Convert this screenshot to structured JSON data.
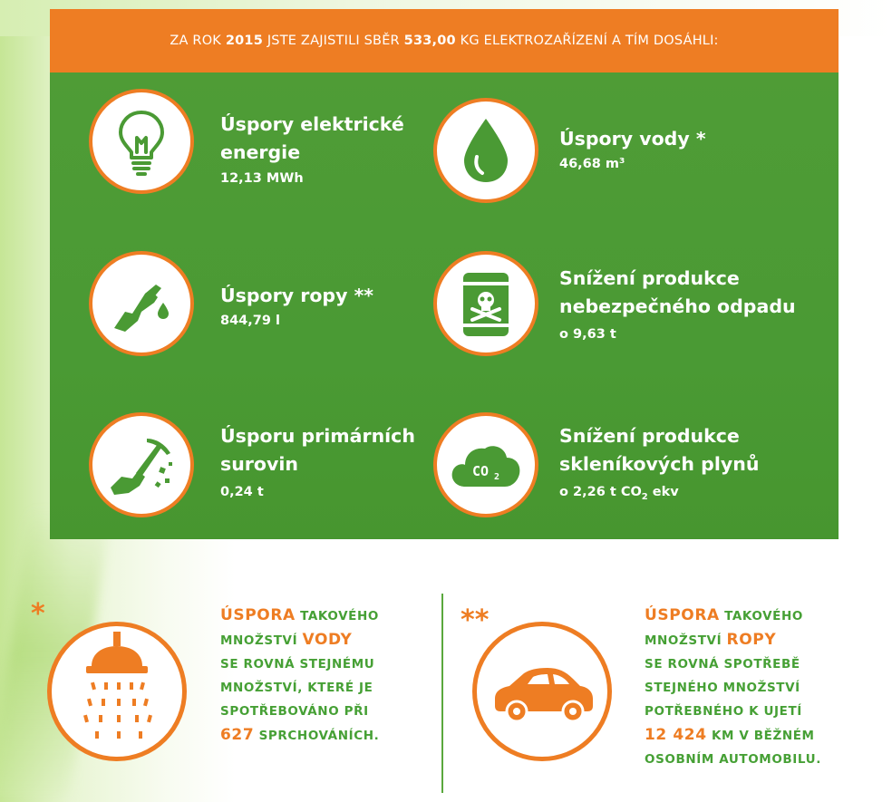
{
  "banner": {
    "prefix": "ZA ROK",
    "year": "2015",
    "middle": "JSTE ZAJISTILI SBĚR",
    "amount": "533,00",
    "suffix": "KG ELEKTROZAŘÍZENÍ A TÍM DOSÁHLI:"
  },
  "items": [
    {
      "icon": "light-bulb-icon",
      "title_line1": "Úspory elektrické",
      "title_line2": "energie",
      "value": "12,13 MWh"
    },
    {
      "icon": "water-drop-icon",
      "title_line1": "Úspory vody *",
      "value": "46,68 m³"
    },
    {
      "icon": "fuel-nozzle-icon",
      "title_line1": "Úspory ropy **",
      "value": "844,79 l"
    },
    {
      "icon": "toxic-barrel-icon",
      "title_line1": "Snížení produkce",
      "title_line2": "nebezpečného odpadu",
      "value": "o 9,63 t"
    },
    {
      "icon": "pickaxe-icon",
      "title_line1": "Úsporu primárních",
      "title_line2": "surovin",
      "value": "0,24 t"
    },
    {
      "icon": "co2-cloud-icon",
      "title_line1": "Snížení produkce",
      "title_line2": "skleníkových plynů",
      "value_prefix": "o 2,26 t CO",
      "value_sub": "2",
      "value_suffix": " ekv"
    }
  ],
  "water_note": {
    "marker": "*",
    "icon": "shower-icon",
    "w1": "ÚSPORA",
    "w2": "TAKOVÉHO",
    "w3": "MNOŽSTVÍ",
    "w4": "VODY",
    "line3": "SE ROVNÁ STEJNÉMU",
    "line4": "MNOŽSTVÍ, KTERÉ JE",
    "line5": "SPOTŘEBOVÁNO PŘI",
    "number": "627",
    "line6_suffix": "SPRCHOVÁNÍCH."
  },
  "oil_note": {
    "marker": "**",
    "icon": "car-icon",
    "w1": "ÚSPORA",
    "w2": "TAKOVÉHO",
    "w3": "MNOŽSTVÍ",
    "w4": "ROPY",
    "line3": "SE ROVNÁ SPOTŘEBĚ",
    "line4": "STEJNÉHO MNOŽSTVÍ",
    "line5": "POTŘEBNÉHO K UJETÍ",
    "number": "12 424",
    "line6_suffix": "KM V BĚŽNÉM",
    "line7": "OSOBNÍM AUTOMOBILU."
  },
  "colors": {
    "orange": "#ee7d23",
    "green": "#4a9a34",
    "text_green": "#46a035"
  }
}
